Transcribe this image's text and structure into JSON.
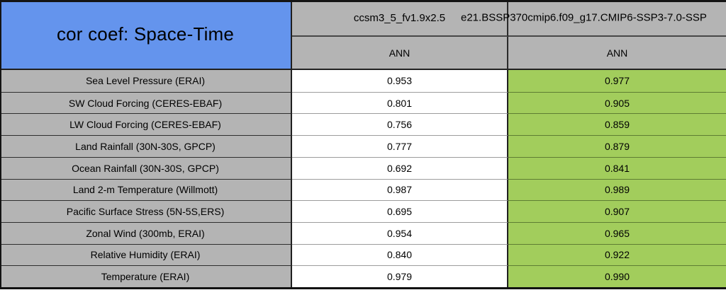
{
  "table": {
    "title": "cor coef: Space-Time",
    "columns": [
      {
        "model": "ccsm3_5_fv1.9x2.5",
        "season": "ANN"
      },
      {
        "model": "e21.BSSP370cmip6.f09_g17.CMIP6-SSP3-7.0-SSP",
        "season": "ANN"
      }
    ],
    "rows": [
      {
        "label": "Sea Level Pressure (ERAI)",
        "values": [
          "0.953",
          "0.977"
        ]
      },
      {
        "label": "SW Cloud Forcing (CERES-EBAF)",
        "values": [
          "0.801",
          "0.905"
        ]
      },
      {
        "label": "LW Cloud Forcing (CERES-EBAF)",
        "values": [
          "0.756",
          "0.859"
        ]
      },
      {
        "label": "Land Rainfall (30N-30S, GPCP)",
        "values": [
          "0.777",
          "0.879"
        ]
      },
      {
        "label": "Ocean Rainfall (30N-30S, GPCP)",
        "values": [
          "0.692",
          "0.841"
        ]
      },
      {
        "label": "Land 2-m Temperature (Willmott)",
        "values": [
          "0.987",
          "0.989"
        ]
      },
      {
        "label": "Pacific Surface Stress (5N-5S,ERS)",
        "values": [
          "0.695",
          "0.907"
        ]
      },
      {
        "label": "Zonal Wind (300mb, ERAI)",
        "values": [
          "0.954",
          "0.965"
        ]
      },
      {
        "label": "Relative Humidity (ERAI)",
        "values": [
          "0.840",
          "0.922"
        ]
      },
      {
        "label": "Temperature (ERAI)",
        "values": [
          "0.979",
          "0.990"
        ]
      }
    ]
  },
  "colors": {
    "title_bg": "#6494ED",
    "header_bg": "#B4B4B4",
    "label_col_bg": "#B4B4B4",
    "model1_col_bg": "#FFFFFF",
    "model2_col_bg": "#A2CD5C",
    "border": "#141414"
  },
  "chart_data": {
    "type": "table",
    "title": "cor coef: Space-Time",
    "columns": [
      "ccsm3_5_fv1.9x2.5 — ANN",
      "e21.BSSP370cmip6.f09_g17.CMIP6-SSP3-7.0-SSP — ANN"
    ],
    "categories": [
      "Sea Level Pressure (ERAI)",
      "SW Cloud Forcing (CERES-EBAF)",
      "LW Cloud Forcing (CERES-EBAF)",
      "Land Rainfall (30N-30S, GPCP)",
      "Ocean Rainfall (30N-30S, GPCP)",
      "Land 2-m Temperature (Willmott)",
      "Pacific Surface Stress (5N-5S,ERS)",
      "Zonal Wind (300mb, ERAI)",
      "Relative Humidity (ERAI)",
      "Temperature (ERAI)"
    ],
    "series": [
      {
        "name": "ccsm3_5_fv1.9x2.5",
        "values": [
          0.953,
          0.801,
          0.756,
          0.777,
          0.692,
          0.987,
          0.695,
          0.954,
          0.84,
          0.979
        ]
      },
      {
        "name": "e21.BSSP370cmip6.f09_g17.CMIP6-SSP3-7.0-SSP",
        "values": [
          0.977,
          0.905,
          0.859,
          0.879,
          0.841,
          0.989,
          0.907,
          0.965,
          0.922,
          0.99
        ]
      }
    ]
  }
}
